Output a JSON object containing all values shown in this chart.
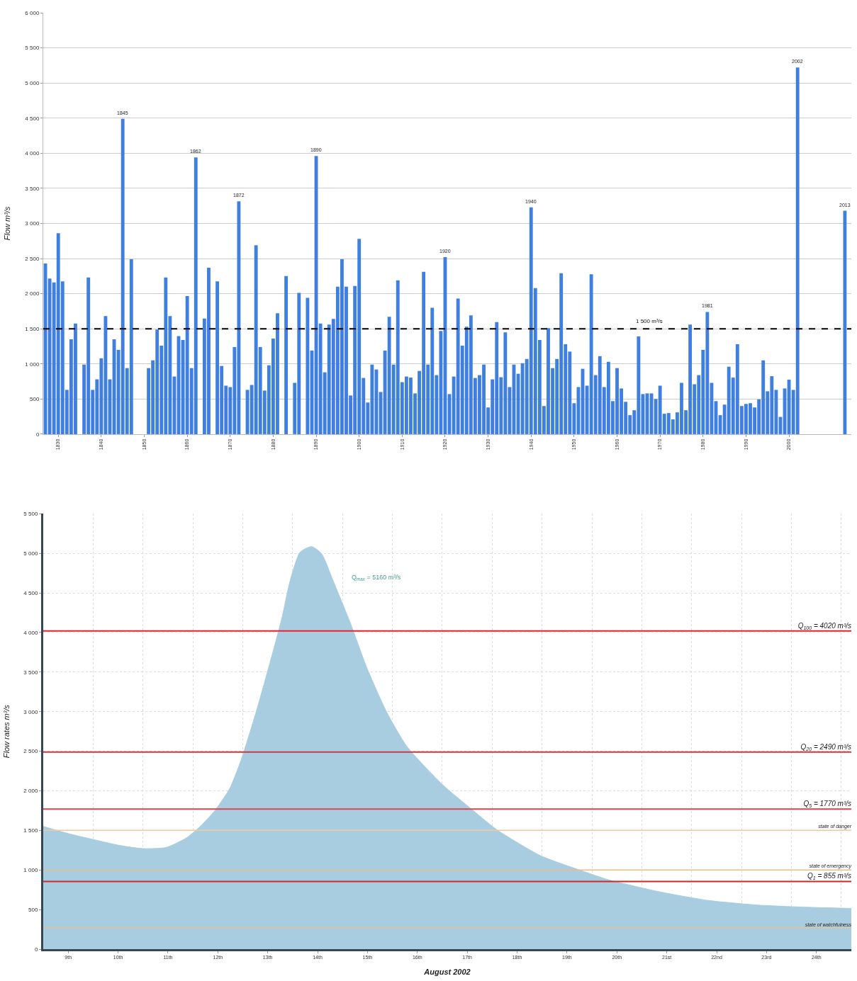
{
  "chart_data": [
    {
      "type": "bar",
      "ylabel": "Flow m³/s",
      "color": "#3f7fe0",
      "x": [
        1827,
        1828,
        1829,
        1830,
        1831,
        1832,
        1833,
        1834,
        1835,
        1836,
        1837,
        1838,
        1839,
        1840,
        1841,
        1842,
        1843,
        1844,
        1845,
        1846,
        1847,
        1848,
        1849,
        1850,
        1851,
        1852,
        1853,
        1854,
        1855,
        1856,
        1857,
        1858,
        1859,
        1860,
        1861,
        1862,
        1863,
        1864,
        1865,
        1866,
        1867,
        1868,
        1869,
        1870,
        1871,
        1872,
        1873,
        1874,
        1875,
        1876,
        1877,
        1878,
        1879,
        1880,
        1881,
        1882,
        1883,
        1884,
        1885,
        1886,
        1887,
        1888,
        1889,
        1890,
        1891,
        1892,
        1893,
        1894,
        1895,
        1896,
        1897,
        1898,
        1899,
        1900,
        1901,
        1902,
        1903,
        1904,
        1905,
        1906,
        1907,
        1908,
        1909,
        1910,
        1911,
        1912,
        1913,
        1914,
        1915,
        1916,
        1917,
        1918,
        1919,
        1920,
        1921,
        1922,
        1923,
        1924,
        1925,
        1926,
        1927,
        1928,
        1929,
        1930,
        1931,
        1932,
        1933,
        1934,
        1935,
        1936,
        1937,
        1938,
        1939,
        1940,
        1941,
        1942,
        1943,
        1944,
        1945,
        1946,
        1947,
        1948,
        1949,
        1950,
        1951,
        1952,
        1953,
        1954,
        1955,
        1956,
        1957,
        1958,
        1959,
        1960,
        1961,
        1962,
        1963,
        1964,
        1965,
        1966,
        1967,
        1968,
        1969,
        1970,
        1971,
        1972,
        1973,
        1974,
        1975,
        1976,
        1977,
        1978,
        1979,
        1980,
        1981,
        1982,
        1983,
        1984,
        1985,
        1986,
        1987,
        1988,
        1989,
        1990,
        1991,
        1992,
        1993,
        1994,
        1995,
        1996,
        1997,
        1998,
        1999,
        2000,
        2001,
        2002,
        2013
      ],
      "values": [
        2430,
        2215,
        2160,
        2860,
        2175,
        630,
        1350,
        1575,
        null,
        990,
        2230,
        630,
        780,
        1080,
        1680,
        780,
        1350,
        1200,
        4490,
        940,
        2490,
        null,
        null,
        null,
        940,
        1050,
        1490,
        1260,
        2230,
        1680,
        820,
        1395,
        1340,
        1965,
        940,
        3940,
        null,
        1645,
        2370,
        null,
        2175,
        970,
        690,
        670,
        1240,
        3315,
        null,
        630,
        700,
        2690,
        1240,
        620,
        980,
        1360,
        1720,
        null,
        2250,
        null,
        730,
        2010,
        null,
        1940,
        1190,
        3960,
        1575,
        880,
        1560,
        1640,
        2100,
        2490,
        2100,
        550,
        2110,
        2780,
        800,
        450,
        990,
        920,
        600,
        1190,
        1670,
        990,
        2190,
        740,
        820,
        805,
        580,
        900,
        2310,
        990,
        1800,
        840,
        1470,
        2520,
        570,
        820,
        1930,
        1260,
        1530,
        1690,
        800,
        840,
        990,
        380,
        780,
        1595,
        810,
        1450,
        670,
        990,
        860,
        1010,
        1070,
        3230,
        2080,
        1340,
        400,
        1510,
        940,
        1070,
        2290,
        1280,
        1175,
        440,
        670,
        930,
        690,
        2275,
        840,
        1110,
        670,
        1030,
        470,
        940,
        650,
        460,
        270,
        340,
        1390,
        570,
        580,
        580,
        500,
        690,
        290,
        300,
        210,
        310,
        730,
        340,
        1560,
        710,
        840,
        1200,
        1740,
        730,
        470,
        270,
        420,
        960,
        805,
        1280,
        400,
        430,
        440,
        380,
        495,
        1050,
        610,
        825,
        630,
        245,
        650,
        775,
        630,
        5220,
        3180
      ],
      "xlim": [
        1826.5,
        2014.5
      ],
      "xticks": [
        1830,
        1840,
        1850,
        1860,
        1870,
        1880,
        1890,
        1900,
        1910,
        1920,
        1930,
        1940,
        1950,
        1960,
        1970,
        1980,
        1990,
        2000
      ],
      "ylim": [
        0,
        6000
      ],
      "yticks": [
        0,
        500,
        {
          "value": 1000,
          "label": "1 000"
        },
        {
          "value": 1500,
          "label": "1 500"
        },
        {
          "value": 2000,
          "label": "2 000"
        },
        {
          "value": 2500,
          "label": "2 500"
        },
        {
          "value": 3000,
          "label": "3 000"
        },
        {
          "value": 3500,
          "label": "3 500"
        },
        {
          "value": 4000,
          "label": "4 000"
        },
        {
          "value": 4500,
          "label": "4 500"
        },
        {
          "value": 5000,
          "label": "5 000"
        },
        {
          "value": 5500,
          "label": "5 500"
        },
        {
          "value": 6000,
          "label": "6 000"
        }
      ],
      "grid": "y",
      "ref_lines": [
        {
          "axis": "y",
          "value": 1500,
          "label": "1 500 m³/s",
          "color": "#000000",
          "line_style": "dashed"
        }
      ],
      "annotations": [
        {
          "text": "1845",
          "x": 1845,
          "y": 4490
        },
        {
          "text": "1862",
          "x": 1862,
          "y": 3940
        },
        {
          "text": "1872",
          "x": 1872,
          "y": 3315
        },
        {
          "text": "1890",
          "x": 1890,
          "y": 3960
        },
        {
          "text": "1920",
          "x": 1920,
          "y": 2520
        },
        {
          "text": "1940",
          "x": 1940,
          "y": 3230
        },
        {
          "text": "1981",
          "x": 1981,
          "y": 1740
        },
        {
          "text": "2002",
          "x": 2002,
          "y": 5220
        },
        {
          "text": "2013",
          "x": 2013,
          "y": 3180
        }
      ]
    },
    {
      "type": "area",
      "xlabel": "August 2002",
      "ylabel": "Flow rates m³/s",
      "color": "#a9cde0",
      "x": [
        9.0,
        9.5,
        10.0,
        10.53,
        11.0,
        11.47,
        11.87,
        12.14,
        12.44,
        12.74,
        12.97,
        13.27,
        13.54,
        13.78,
        13.95,
        14.15,
        14.38,
        14.58,
        14.81,
        15.15,
        15.48,
        15.88,
        16.29,
        17.0,
        17.63,
        18.1,
        18.97,
        19.84,
        20.31,
        21.31,
        22.31,
        23.31,
        24.32,
        25.05,
        25.2
      ],
      "values": [
        1550,
        1460,
        1385,
        1310,
        1270,
        1285,
        1405,
        1545,
        1750,
        2030,
        2395,
        3000,
        3605,
        4170,
        4655,
        5015,
        5085,
        4995,
        4655,
        4130,
        3565,
        3000,
        2560,
        2080,
        1745,
        1505,
        1180,
        980,
        880,
        730,
        617,
        557,
        529,
        517,
        515
      ],
      "xlim": [
        9,
        25.2
      ],
      "xticks": [
        {
          "value": 9.5,
          "label": "9th"
        },
        {
          "value": 10.5,
          "label": "10th"
        },
        {
          "value": 11.5,
          "label": "11th"
        },
        {
          "value": 12.5,
          "label": "12th"
        },
        {
          "value": 13.5,
          "label": "13th"
        },
        {
          "value": 14.5,
          "label": "14th"
        },
        {
          "value": 15.5,
          "label": "15th"
        },
        {
          "value": 16.5,
          "label": "16th"
        },
        {
          "value": 17.5,
          "label": "17th"
        },
        {
          "value": 18.5,
          "label": "18th"
        },
        {
          "value": 19.5,
          "label": "19th"
        },
        {
          "value": 20.5,
          "label": "20th"
        },
        {
          "value": 21.5,
          "label": "21st"
        },
        {
          "value": 22.5,
          "label": "22nd"
        },
        {
          "value": 23.5,
          "label": "23rd"
        },
        {
          "value": 24.5,
          "label": "24th"
        },
        {
          "value": 10,
          "label": null
        },
        {
          "value": 11,
          "label": null
        },
        {
          "value": 12,
          "label": null
        },
        {
          "value": 13,
          "label": null
        },
        {
          "value": 14,
          "label": null
        },
        {
          "value": 15,
          "label": null
        },
        {
          "value": 16,
          "label": null
        },
        {
          "value": 17,
          "label": null
        },
        {
          "value": 18,
          "label": null
        },
        {
          "value": 19,
          "label": null
        },
        {
          "value": 20,
          "label": null
        },
        {
          "value": 21,
          "label": null
        },
        {
          "value": 22,
          "label": null
        },
        {
          "value": 23,
          "label": null
        },
        {
          "value": 24,
          "label": null
        },
        {
          "value": 25,
          "label": null
        }
      ],
      "ylim": [
        0,
        5500
      ],
      "yticks": [
        0,
        500,
        {
          "value": 1000,
          "label": "1 000"
        },
        {
          "value": 1500,
          "label": "1 500"
        },
        {
          "value": 2000,
          "label": "2 000"
        },
        {
          "value": 2500,
          "label": "2 500"
        },
        {
          "value": 3000,
          "label": "3 000"
        },
        {
          "value": 3500,
          "label": "3 500"
        },
        {
          "value": 4000,
          "label": "4 000"
        },
        {
          "value": 4500,
          "label": "4 500"
        },
        {
          "value": 5000,
          "label": "5 000"
        },
        {
          "value": 5500,
          "label": "5 500"
        }
      ],
      "grid": true,
      "ref_lines": [
        {
          "axis": "y",
          "value": 4020,
          "label": "Q$_{100}$ = 4020 m³/s",
          "color": "#e8222c",
          "line_style": "solid"
        },
        {
          "axis": "y",
          "value": 2490,
          "label": "Q$_{20}$ = 2490 m³/s",
          "color": "#d4343c",
          "line_style": "solid"
        },
        {
          "axis": "y",
          "value": 1770,
          "label": "Q$_{5}$ = 1770 m³/s",
          "color": "#e6404a",
          "line_style": "solid"
        },
        {
          "axis": "y",
          "value": 855,
          "label": "Q$_{1}$ = 855 m³/s",
          "color": "#cc2830",
          "line_style": "solid"
        },
        {
          "axis": "y",
          "value": 1500,
          "label": "state of danger",
          "color": "#f4c89c",
          "line_style": "solid"
        },
        {
          "axis": "y",
          "value": 1000,
          "label": "state of emergency",
          "color": "#eebb88",
          "line_style": "solid"
        },
        {
          "axis": "y",
          "value": 270,
          "label": "state of watchfulness",
          "color": "#e8c08f",
          "line_style": "solid"
        }
      ],
      "annotations": [
        "Q$_{max}$ = 5160 m³/s"
      ]
    }
  ]
}
